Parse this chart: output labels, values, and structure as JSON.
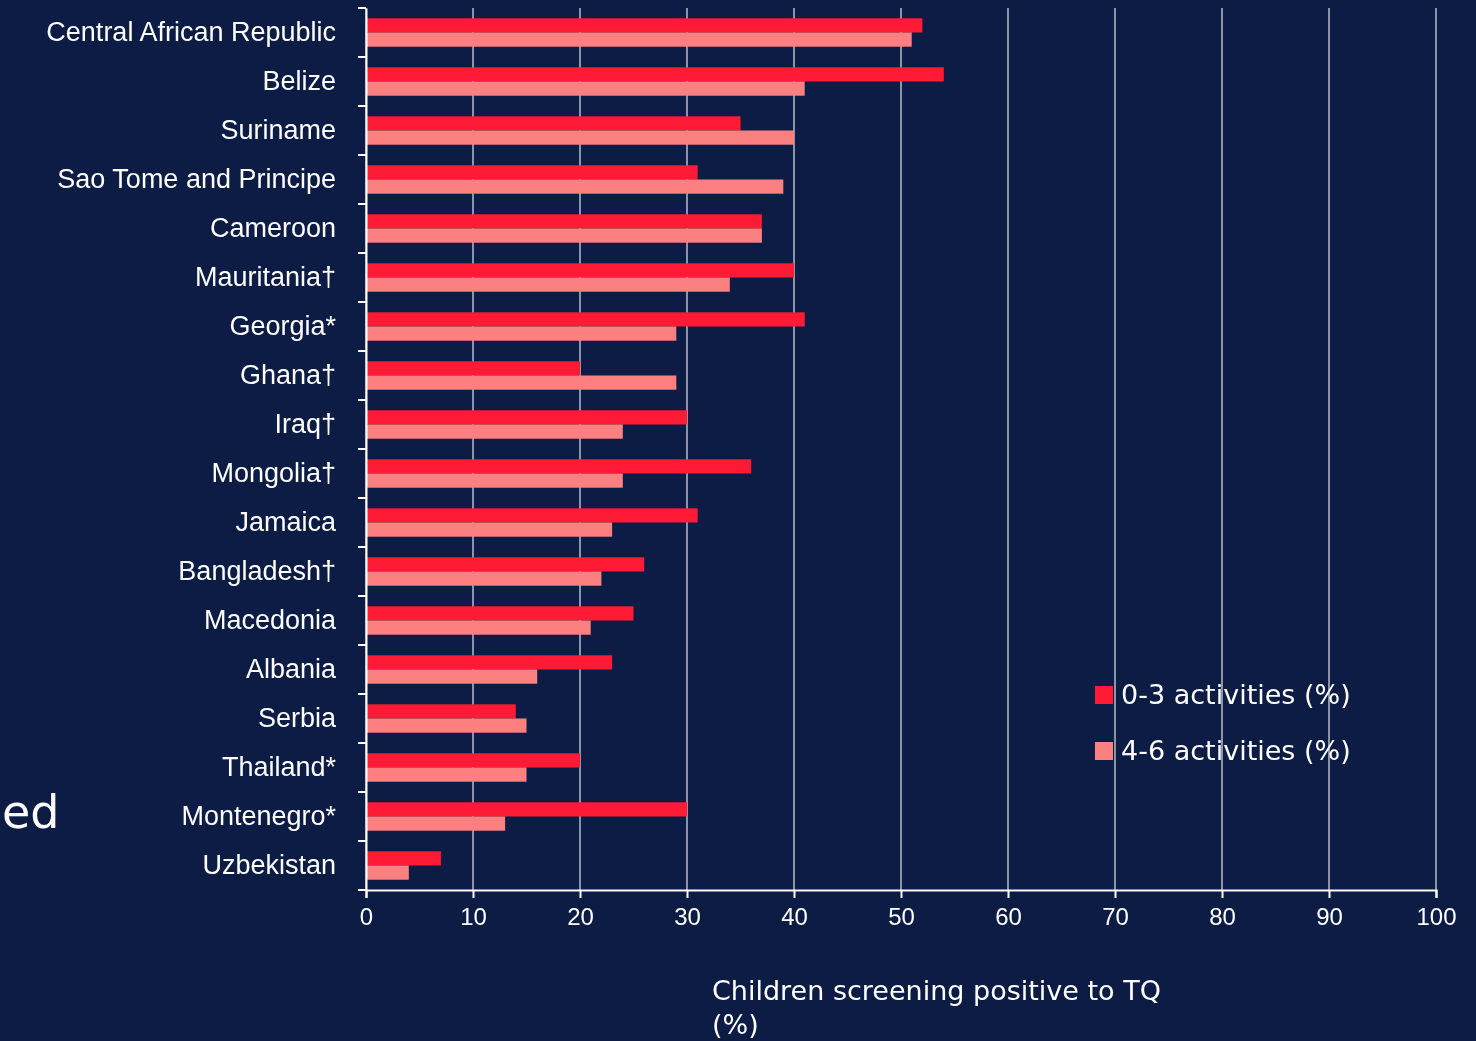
{
  "chart_data": {
    "type": "bar",
    "orientation": "horizontal",
    "xlabel": "Children screening positive to TQ (%)",
    "categories": [
      "Central African Republic",
      "Belize",
      "Suriname",
      "Sao Tome and Principe",
      "Cameroon",
      "Mauritania†",
      "Georgia*",
      "Ghana†",
      "Iraq†",
      "Mongolia†",
      "Jamaica",
      "Bangladesh†",
      "Macedonia",
      "Albania",
      "Serbia",
      "Thailand*",
      "Montenegro*",
      "Uzbekistan"
    ],
    "series": [
      {
        "name": "0-3 activities (%)",
        "color": "#ff1a35",
        "values": [
          52,
          54,
          35,
          31,
          37,
          40,
          41,
          20,
          30,
          36,
          31,
          26,
          25,
          23,
          14,
          20,
          30,
          7
        ]
      },
      {
        "name": "4-6 activities (%)",
        "color": "#fc8080",
        "values": [
          51,
          41,
          40,
          39,
          37,
          34,
          29,
          29,
          24,
          24,
          23,
          22,
          21,
          16,
          15,
          15,
          13,
          4
        ]
      }
    ],
    "xlim": [
      0,
      100
    ],
    "xticks": [
      0,
      10,
      20,
      30,
      40,
      50,
      60,
      70,
      80,
      90,
      100
    ],
    "grid": "x",
    "legend": "right",
    "annotations": [
      "ed"
    ]
  }
}
